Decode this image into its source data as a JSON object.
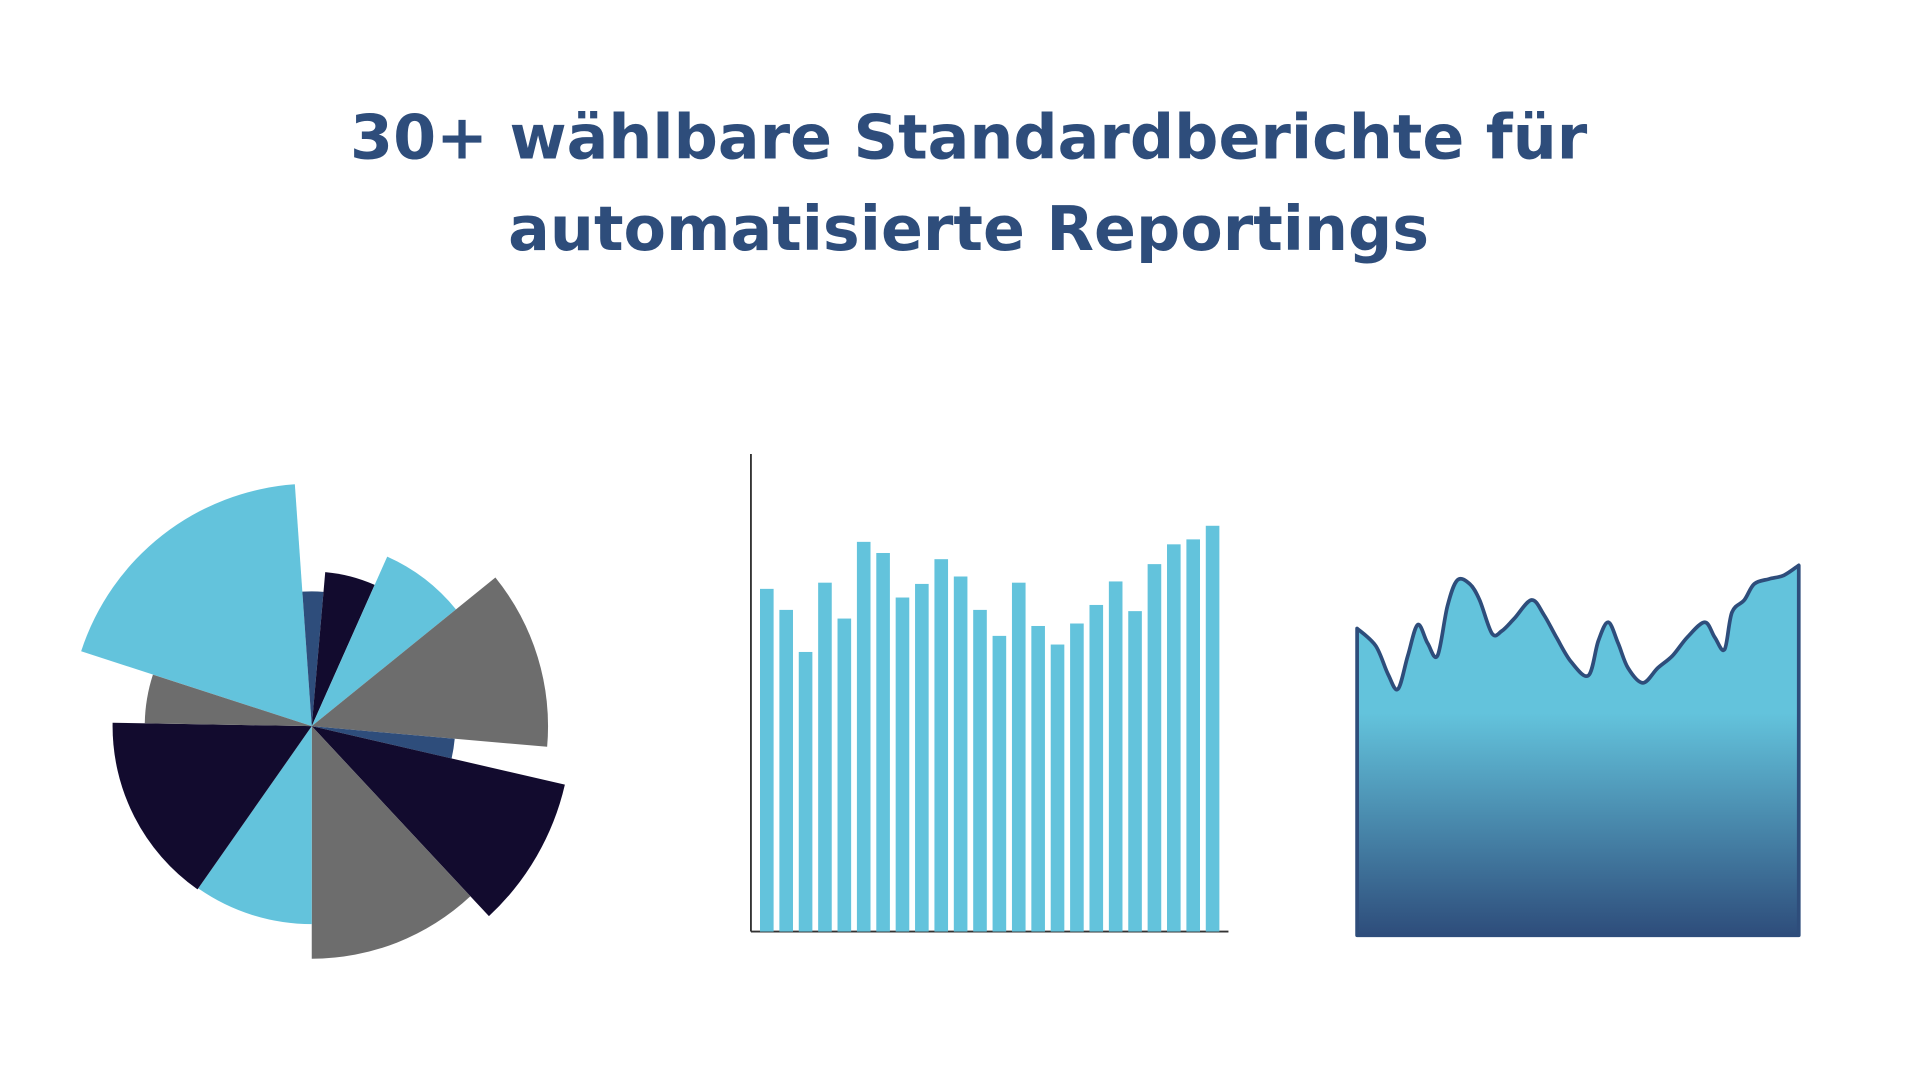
{
  "title": [
    "30+ wählbare Standardberichte für",
    "automatisierte Reportings"
  ],
  "chart_data": [
    {
      "type": "polar",
      "start_angle": 288,
      "angles": [
        68,
        9,
        19,
        27,
        44,
        8,
        34,
        43,
        35,
        56,
        17
      ],
      "values": [
        196,
        109,
        125,
        150,
        191,
        116,
        210,
        188,
        160,
        161,
        135
      ],
      "colors": [
        "#63c3dc",
        "#2e4d7b",
        "#120b2e",
        "#63c3dc",
        "#6d6d6d",
        "#2e4d7b",
        "#120b2e",
        "#6d6d6d",
        "#63c3dc",
        "#120b2e",
        "#6d6d6d"
      ]
    },
    {
      "type": "bar",
      "color": "#63c3dc",
      "ylim": [
        0,
        386
      ],
      "values": [
        277,
        260,
        226,
        282,
        253,
        315,
        306,
        270,
        281,
        301,
        287,
        260,
        239,
        282,
        247,
        232,
        249,
        264,
        283,
        259,
        297,
        313,
        317,
        328
      ]
    },
    {
      "type": "area",
      "color": "#63c3dc",
      "line_color": "#2e4d7b",
      "xlim": [
        0,
        358
      ],
      "ylim": [
        0,
        300
      ],
      "x": [
        0,
        15,
        25,
        33,
        41,
        49,
        57,
        65,
        73,
        81,
        91,
        99,
        109,
        117,
        127,
        141,
        151,
        161,
        173,
        187,
        195,
        203,
        211,
        219,
        231,
        243,
        255,
        267,
        281,
        289,
        297,
        303,
        313,
        321,
        333,
        345,
        357
      ],
      "values": [
        248,
        234,
        211,
        199,
        226,
        251,
        236,
        226,
        266,
        287,
        284,
        271,
        244,
        246,
        256,
        271,
        259,
        241,
        221,
        210,
        238,
        253,
        236,
        216,
        204,
        216,
        226,
        241,
        253,
        241,
        231,
        261,
        271,
        284,
        288,
        291,
        299
      ]
    }
  ]
}
